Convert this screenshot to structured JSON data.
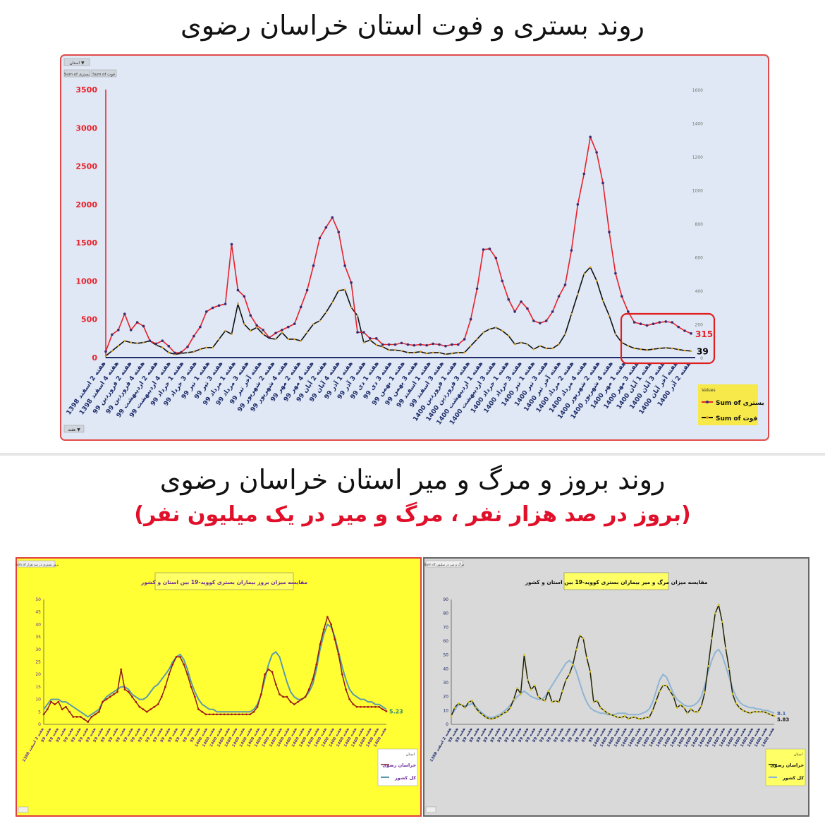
{
  "titles": {
    "main": "روند بستری و فوت استان خراسان رضوی",
    "second": "روند بروز و مرگ و میر استان خراسان رضوی",
    "subtitle": "(بروز در صد هزار نفر ، مرگ و میر در یک میلیون نفر)"
  },
  "colors": {
    "top_bg": "#dfe8f4",
    "top_border": "#e24a4a",
    "red_series": "#e8202a",
    "black_series": "#111111",
    "yellow_bg": "#ffff33",
    "gray_bg": "#d9d9d9",
    "teal_series": "#5b9ba8",
    "darkred_series": "#8b1a1a",
    "navy_axis": "#1f2d6b",
    "highlight_box": "#e02020"
  },
  "chart_data": [
    {
      "type": "line",
      "filter_button": "استان ▼",
      "field_buttons": [
        "Sum of بستری",
        "Sum of فوت"
      ],
      "bottom_button": "هفته ▼",
      "ylim_left": [
        0,
        3500
      ],
      "yticks_left": [
        "0",
        "500",
        "1000",
        "1500",
        "2000",
        "2500",
        "3000",
        "3500"
      ],
      "ylim_right": [
        0,
        1600
      ],
      "yticks_right": [
        "0",
        "200",
        "400",
        "600",
        "800",
        "1000",
        "1200",
        "1400",
        "1600"
      ],
      "xticks": [
        "هفته 2 اسفند 1398",
        "هفته 4 اسفند 1398",
        "هفته 2 فروردین 99",
        "هفته 4 فروردین 99",
        "هفته 2 اردیبهشت 99",
        "هفته 4 اردیبهشت 99",
        "هفته 1 خرداد 99",
        "هفته 3 خرداد 99",
        "هفته 1 تیر 99",
        "هفته 3 تیر 99",
        "هفته 1 مرداد 99",
        "هفته 3 مرداد 99",
        "هفته آخر تیر 99",
        "هفته 2 شهریور 99",
        "هفته 4 شهریور 99",
        "هفته 2 مهر 99",
        "هفته 4 مهر 99",
        "هفته 2 آبان 99",
        "هفته 4 آبان 99",
        "هفته 1 آذر 99",
        "هفته 3 آذر 99",
        "هفته 1 دی 99",
        "هفته 3 دی 99",
        "هفته 1 بهمن 99",
        "هفته 3 بهمن 99",
        "هفته 1 اسفند 99",
        "هفته 3 اسفند 99",
        "هفته 1 فروردین 1400",
        "هفته 3 فروردین 1400",
        "هفته 1 اردیبهشت 1400",
        "هفته 3 اردیبهشت 1400",
        "هفته 1 خرداد 1400",
        "هفته 3 خرداد 1400",
        "هفته 1 تیر 1400",
        "هفته 3 تیر 1400",
        "هفته آخر تیر 1400",
        "هفته 2 مرداد 1400",
        "هفته 4 مرداد 1400",
        "هفته 2 شهریور 1400",
        "هفته 4 شهریور 1400",
        "هفته 1 مهر 1400",
        "هفته 3 مهر 1400",
        "هفته 1 آبان 1400",
        "هفته 3 آبان 1400",
        "هفته آخر آبان 1400",
        "هفته 2 آذر 1400"
      ],
      "legend_title": "Values",
      "series": [
        {
          "name": "Sum of بستری",
          "axis": "left",
          "values": [
            80,
            300,
            360,
            570,
            360,
            460,
            410,
            220,
            180,
            220,
            150,
            60,
            70,
            140,
            280,
            400,
            600,
            650,
            680,
            700,
            1480,
            880,
            800,
            550,
            420,
            360,
            260,
            320,
            360,
            400,
            440,
            660,
            880,
            1200,
            1560,
            1700,
            1830,
            1640,
            1200,
            980,
            330,
            330,
            250,
            250,
            170,
            170,
            170,
            190,
            170,
            160,
            170,
            160,
            180,
            170,
            150,
            170,
            170,
            240,
            500,
            900,
            1410,
            1420,
            1300,
            1000,
            760,
            600,
            730,
            640,
            480,
            450,
            480,
            600,
            800,
            950,
            1400,
            2000,
            2400,
            2880,
            2680,
            2280,
            1640,
            1100,
            800,
            600,
            460,
            440,
            420,
            440,
            460,
            470,
            460,
            400,
            350,
            315
          ]
        },
        {
          "name": "Sum of فوت",
          "axis": "right",
          "values": [
            10,
            40,
            70,
            100,
            90,
            85,
            90,
            100,
            75,
            60,
            30,
            20,
            25,
            30,
            35,
            50,
            60,
            60,
            110,
            160,
            140,
            320,
            200,
            160,
            180,
            140,
            115,
            110,
            150,
            110,
            110,
            100,
            150,
            200,
            220,
            270,
            330,
            400,
            405,
            300,
            250,
            90,
            105,
            75,
            65,
            45,
            45,
            40,
            30,
            30,
            35,
            25,
            30,
            30,
            20,
            25,
            30,
            30,
            70,
            110,
            150,
            170,
            180,
            160,
            130,
            80,
            90,
            80,
            50,
            70,
            55,
            55,
            80,
            140,
            260,
            380,
            500,
            540,
            460,
            340,
            250,
            140,
            90,
            70,
            55,
            50,
            45,
            50,
            55,
            58,
            55,
            48,
            42,
            39
          ]
        }
      ],
      "end_labels": [
        "315",
        "39"
      ]
    },
    {
      "type": "line",
      "title": "مقایسه میزان بروز بیماران بستری کووید-19 بین استان و کشور",
      "header_button": "Sum of بروز بستری در صد هزار",
      "ylim": [
        0,
        50
      ],
      "yticks": [
        "0",
        "5",
        "10",
        "15",
        "20",
        "25",
        "30",
        "35",
        "40",
        "45",
        "50"
      ],
      "xticks_start": "هفته 2 اسفند 1398",
      "legend_title": "استان",
      "series": [
        {
          "name": "خراسان رضوی",
          "values": [
            4,
            6,
            9,
            8,
            9,
            6,
            7,
            5,
            3,
            3,
            3,
            2,
            1,
            3,
            4,
            5,
            9,
            10,
            11,
            12,
            13,
            22,
            14,
            13,
            11,
            9,
            7,
            6,
            5,
            6,
            7,
            8,
            11,
            15,
            20,
            24,
            27,
            27,
            24,
            20,
            15,
            11,
            6,
            5,
            4,
            4,
            4,
            4,
            4,
            4,
            4,
            4,
            4,
            4,
            4,
            4,
            4,
            5,
            7,
            12,
            20,
            22,
            21,
            16,
            12,
            11,
            11,
            9,
            8,
            9,
            10,
            11,
            14,
            18,
            24,
            32,
            38,
            43,
            40,
            34,
            28,
            20,
            14,
            10,
            8,
            7,
            7,
            7,
            7,
            7,
            7,
            7,
            6,
            5.23
          ]
        },
        {
          "name": "کل کشور",
          "values": [
            6,
            8,
            10,
            10,
            10,
            9,
            9,
            8,
            7,
            6,
            5,
            4,
            3,
            4,
            5,
            6,
            9,
            11,
            12,
            13,
            14,
            15,
            15,
            14,
            12,
            11,
            10,
            10,
            11,
            13,
            15,
            16,
            18,
            20,
            22,
            25,
            27,
            28,
            26,
            22,
            17,
            13,
            10,
            8,
            7,
            6,
            6,
            5,
            5,
            5,
            5,
            5,
            5,
            5,
            5,
            5,
            5,
            6,
            8,
            12,
            18,
            24,
            28,
            29,
            27,
            22,
            17,
            13,
            11,
            10,
            10,
            11,
            13,
            16,
            22,
            30,
            36,
            40,
            39,
            35,
            29,
            23,
            18,
            14,
            12,
            11,
            10,
            10,
            9,
            9,
            8,
            8,
            7,
            6
          ]
        }
      ],
      "end_labels": [
        "5.23"
      ]
    },
    {
      "type": "line",
      "title": "مقایسه میزان مرگ و میر بیماران بستری کووید-19 بین استان و کشور",
      "header_button": "Sum of مرگ و میر در میلیون",
      "ylim": [
        0,
        90
      ],
      "yticks": [
        "0",
        "10",
        "20",
        "30",
        "40",
        "50",
        "60",
        "70",
        "80",
        "90"
      ],
      "xticks_start": "هفته 2 اسفند 1398",
      "legend_title": "استان",
      "series": [
        {
          "name": "خراسان رضوی",
          "values": [
            6,
            12,
            15,
            14,
            12,
            16,
            17,
            12,
            9,
            7,
            5,
            4,
            4,
            5,
            6,
            8,
            9,
            12,
            18,
            26,
            22,
            50,
            32,
            25,
            28,
            20,
            18,
            17,
            24,
            16,
            17,
            16,
            24,
            32,
            36,
            43,
            54,
            64,
            62,
            48,
            38,
            16,
            17,
            12,
            10,
            8,
            7,
            6,
            5,
            5,
            6,
            4,
            5,
            5,
            4,
            4,
            5,
            5,
            10,
            17,
            24,
            28,
            28,
            24,
            20,
            12,
            14,
            12,
            8,
            11,
            9,
            9,
            13,
            23,
            42,
            62,
            80,
            86,
            74,
            55,
            40,
            22,
            15,
            12,
            10,
            9,
            8,
            9,
            9,
            9,
            9,
            8,
            7,
            5.83
          ]
        },
        {
          "name": "کل کشور",
          "values": [
            7,
            10,
            14,
            14,
            13,
            14,
            15,
            13,
            10,
            8,
            6,
            5,
            5,
            6,
            7,
            9,
            11,
            14,
            17,
            20,
            22,
            24,
            22,
            20,
            19,
            18,
            18,
            20,
            24,
            28,
            32,
            36,
            40,
            44,
            46,
            44,
            38,
            30,
            22,
            16,
            12,
            10,
            9,
            8,
            8,
            7,
            7,
            7,
            8,
            8,
            8,
            7,
            7,
            7,
            7,
            8,
            9,
            11,
            16,
            24,
            32,
            36,
            34,
            28,
            22,
            18,
            16,
            14,
            13,
            13,
            14,
            16,
            20,
            28,
            38,
            46,
            52,
            54,
            50,
            42,
            34,
            26,
            20,
            16,
            14,
            13,
            12,
            12,
            11,
            11,
            10,
            10,
            9,
            8.1
          ]
        }
      ],
      "end_labels": [
        "8.1",
        "5.83"
      ]
    }
  ]
}
